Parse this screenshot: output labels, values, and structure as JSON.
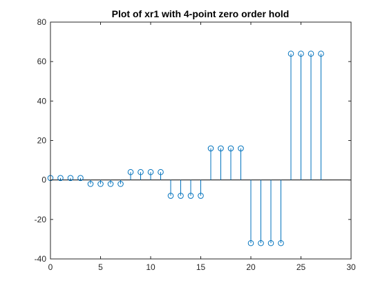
{
  "chart_data": {
    "type": "stem",
    "title": "Plot of xr1 with 4-point zero order hold",
    "xlabel": "",
    "ylabel": "",
    "xlim": [
      0,
      30
    ],
    "ylim": [
      -40,
      80
    ],
    "x_ticks": [
      0,
      5,
      10,
      15,
      20,
      25,
      30
    ],
    "y_ticks": [
      -40,
      -20,
      0,
      20,
      40,
      60,
      80
    ],
    "grid": false,
    "baseline": 0,
    "marker": "circle",
    "color": "#0072BD",
    "series": [
      {
        "x": [
          0,
          1,
          2,
          3,
          4,
          5,
          6,
          7,
          8,
          9,
          10,
          11,
          12,
          13,
          14,
          15,
          16,
          17,
          18,
          19,
          20,
          21,
          22,
          23,
          24,
          25,
          26,
          27
        ],
        "values": [
          1,
          1,
          1,
          1,
          -2,
          -2,
          -2,
          -2,
          4,
          4,
          4,
          4,
          -8,
          -8,
          -8,
          -8,
          16,
          16,
          16,
          16,
          -32,
          -32,
          -32,
          -32,
          64,
          64,
          64,
          64
        ]
      }
    ]
  }
}
